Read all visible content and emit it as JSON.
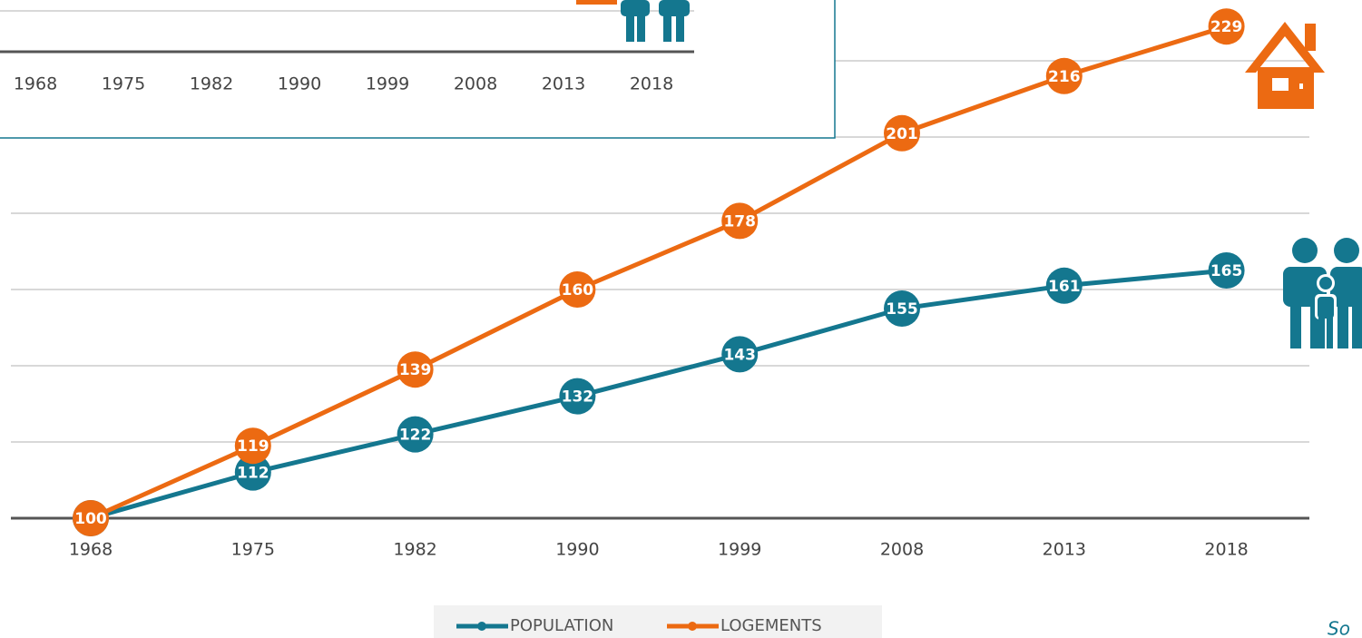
{
  "chart_data": {
    "type": "line",
    "categories": [
      "1968",
      "1975",
      "1982",
      "1990",
      "1999",
      "2008",
      "2013",
      "2018"
    ],
    "series": [
      {
        "name": "POPULATION",
        "color": "#14778f",
        "values": [
          100,
          112,
          122,
          132,
          143,
          155,
          161,
          165
        ]
      },
      {
        "name": "LOGEMENTS",
        "color": "#ec6a12",
        "values": [
          100,
          119,
          139,
          160,
          178,
          201,
          216,
          229
        ]
      }
    ],
    "ylim": [
      100,
      236
    ],
    "yticks": [
      100,
      120,
      140,
      160,
      180,
      200,
      220
    ],
    "grid": true,
    "legend": "bottom",
    "inset_categories": [
      "1968",
      "1975",
      "1982",
      "1990",
      "1999",
      "2008",
      "2013",
      "2018"
    ],
    "source": "So"
  }
}
